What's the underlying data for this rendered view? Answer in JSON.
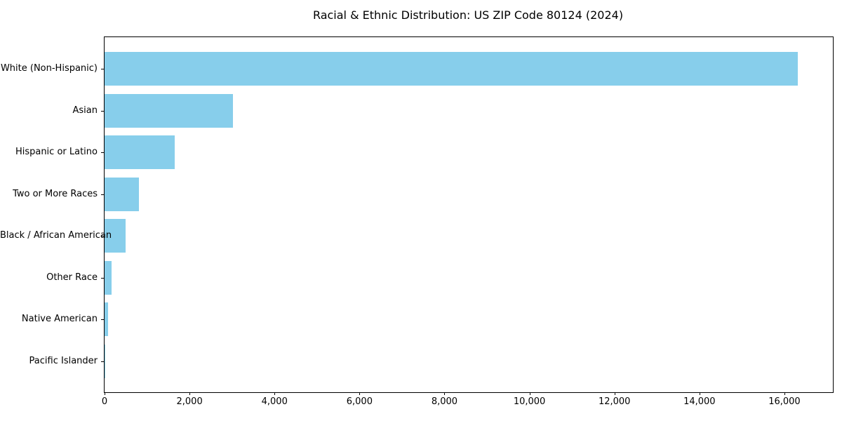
{
  "chart_data": {
    "type": "bar",
    "orientation": "horizontal",
    "title": "Racial & Ethnic Distribution: US ZIP Code 80124 (2024)",
    "categories": [
      "White (Non-Hispanic)",
      "Asian",
      "Hispanic or Latino",
      "Two or More Races",
      "Black / African American",
      "Other Race",
      "Native American",
      "Pacific Islander"
    ],
    "values": [
      16310,
      3020,
      1650,
      810,
      500,
      165,
      85,
      10
    ],
    "xlabel": "",
    "ylabel": "",
    "xlim": [
      0,
      17140
    ],
    "xticks": [
      0,
      2000,
      4000,
      6000,
      8000,
      10000,
      12000,
      14000,
      16000
    ],
    "xtick_labels": [
      "0",
      "2,000",
      "4,000",
      "6,000",
      "8,000",
      "10,000",
      "12,000",
      "14,000",
      "16,000"
    ],
    "bar_color": "#87CEEB",
    "spine_color": "#000000",
    "grid": false,
    "legend": null
  }
}
